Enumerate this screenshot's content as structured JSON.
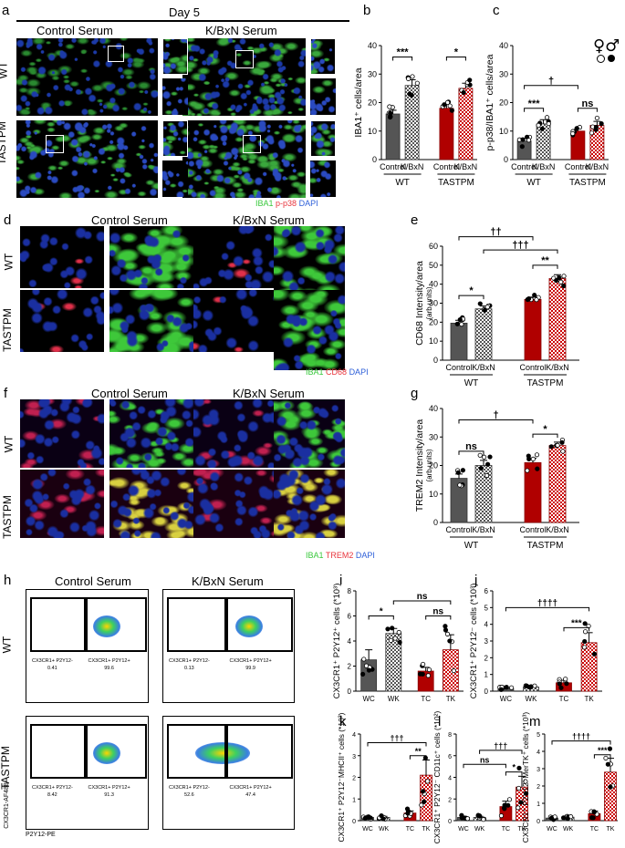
{
  "colors": {
    "wt": "#555555",
    "tastpm": "#b00000",
    "iba1": "#39c83c",
    "p38": "#e8343c",
    "cd68": "#e8343c",
    "dapi": "#2d5fd8",
    "trem2": "#e8343c"
  },
  "panel_letters": [
    "a",
    "b",
    "c",
    "d",
    "e",
    "f",
    "g",
    "h",
    "i",
    "j",
    "k",
    "l",
    "m"
  ],
  "panel_a": {
    "header": "Day 5",
    "col1": "Control Serum",
    "col2": "K/BxN Serum",
    "row1": "WT",
    "row2": "TASTPM",
    "legend": [
      "IBA1",
      "p-p38",
      "DAPI"
    ]
  },
  "panel_d": {
    "col1": "Control Serum",
    "col2": "K/BxN Serum",
    "row1": "WT",
    "row2": "TASTPM",
    "legend": [
      "IBA1",
      "CD68",
      "DAPI"
    ]
  },
  "panel_f": {
    "col1": "Control Serum",
    "col2": "K/BxN Serum",
    "row1": "WT",
    "row2": "TASTPM",
    "legend": [
      "IBA1",
      "TREM2",
      "DAPI"
    ]
  },
  "panel_h": {
    "col1": "Control Serum",
    "col2": "K/BxN Serum",
    "row1": "WT",
    "row2": "TASTPM",
    "xaxis": "P2Y12-PE",
    "yaxis": "CX3CR1-AF488",
    "gates": [
      {
        "neg_label": "CX3CR1+ P2Y12-",
        "neg_val": "0.41",
        "pos_label": "CX3CR1+ P2Y12+",
        "pos_val": "99.6"
      },
      {
        "neg_label": "CX3CR1+ P2Y12-",
        "neg_val": "0.13",
        "pos_label": "CX3CR1+ P2Y12+",
        "pos_val": "99.9"
      },
      {
        "neg_label": "CX3CR1+ P2Y12-",
        "neg_val": "8.42",
        "pos_label": "CX3CR1+ P2Y12+",
        "pos_val": "91.3"
      },
      {
        "neg_label": "CX3CR1+ P2Y12-",
        "neg_val": "52.6",
        "pos_label": "CX3CR1+ P2Y12+",
        "pos_val": "47.4"
      }
    ]
  },
  "sex_symbols": "♀♂",
  "chart_data": [
    {
      "id": "b",
      "type": "bar",
      "ylabel": "IBA1⁺ cells/area",
      "ylim": [
        0,
        40
      ],
      "yticks": [
        0,
        10,
        20,
        30,
        40
      ],
      "categories": [
        "Control",
        "K/BxN",
        "Control",
        "K/BxN"
      ],
      "groups": [
        "WT",
        "TASTPM"
      ],
      "values": [
        16,
        26,
        18,
        25
      ],
      "errors": [
        1.3,
        2,
        1.5,
        1.8
      ],
      "annotations": [
        {
          "from": 0,
          "to": 1,
          "text": "***",
          "y": 36
        },
        {
          "from": 2,
          "to": 3,
          "text": "*",
          "y": 36
        }
      ]
    },
    {
      "id": "c",
      "type": "bar",
      "ylabel": "p-p38/IBA1⁺ cells/area",
      "ylim": [
        0,
        40
      ],
      "yticks": [
        0,
        10,
        20,
        30,
        40
      ],
      "categories": [
        "Control",
        "K/BxN",
        "Control",
        "K/BxN"
      ],
      "groups": [
        "WT",
        "TASTPM"
      ],
      "values": [
        6.5,
        12.5,
        10,
        12
      ],
      "errors": [
        1,
        1.5,
        0.8,
        1.4
      ],
      "annotations": [
        {
          "from": 0,
          "to": 1,
          "text": "***",
          "y": 18
        },
        {
          "from": 2,
          "to": 3,
          "text": "ns",
          "y": 18
        },
        {
          "from": 0,
          "to": 2,
          "text": "†",
          "y": 26
        }
      ]
    },
    {
      "id": "e",
      "type": "bar",
      "ylabel": "CD68 Intensity/area",
      "ylabel2": "(arb.units)",
      "ylim": [
        0,
        60
      ],
      "yticks": [
        0,
        10,
        20,
        30,
        40,
        50,
        60
      ],
      "categories": [
        "Control",
        "K/BxN",
        "Control",
        "K/BxN"
      ],
      "groups": [
        "WT",
        "TASTPM"
      ],
      "values": [
        19.5,
        27,
        32,
        43
      ],
      "errors": [
        1.5,
        1.5,
        1.2,
        2
      ],
      "annotations": [
        {
          "from": 0,
          "to": 1,
          "text": "*",
          "y": 34
        },
        {
          "from": 2,
          "to": 3,
          "text": "**",
          "y": 50
        },
        {
          "from": 1,
          "to": 3,
          "text": "†††",
          "y": 58
        },
        {
          "from": 0,
          "to": 2,
          "text": "††",
          "y": 65
        }
      ]
    },
    {
      "id": "g",
      "type": "bar",
      "ylabel": "TREM2 Intensity/area",
      "ylabel2": "(arb.units)",
      "ylim": [
        0,
        40
      ],
      "yticks": [
        0,
        10,
        20,
        30,
        40
      ],
      "categories": [
        "Control",
        "K/BxN",
        "Control",
        "K/BxN"
      ],
      "groups": [
        "WT",
        "TASTPM"
      ],
      "values": [
        15.5,
        20,
        21,
        27
      ],
      "errors": [
        1.5,
        1.8,
        1.5,
        1.2
      ],
      "annotations": [
        {
          "from": 0,
          "to": 1,
          "text": "ns",
          "y": 25
        },
        {
          "from": 2,
          "to": 3,
          "text": "*",
          "y": 31
        },
        {
          "from": 0,
          "to": 2,
          "text": "†",
          "y": 36
        }
      ]
    },
    {
      "id": "i",
      "type": "bar",
      "ylabel": "CX3CR1⁺ P2Y12⁺ cells (*10³)",
      "ylim": [
        0,
        8
      ],
      "yticks": [
        0,
        2,
        4,
        6,
        8
      ],
      "categories": [
        "WC",
        "WK",
        "TC",
        "TK"
      ],
      "values": [
        2.5,
        4.6,
        1.6,
        3.3
      ],
      "errors": [
        0.8,
        0.4,
        0.3,
        1.2
      ],
      "annotations": [
        {
          "from": 0,
          "to": 1,
          "text": "*",
          "y": 6
        },
        {
          "from": 2,
          "to": 3,
          "text": "ns",
          "y": 6
        },
        {
          "from": 1,
          "to": 3,
          "text": "ns",
          "y": 7.2
        }
      ]
    },
    {
      "id": "j",
      "type": "bar",
      "ylabel": "CX3CR1⁺ P2Y12⁻ cells (*10³)",
      "ylim": [
        0,
        6
      ],
      "yticks": [
        0,
        1,
        2,
        3,
        4,
        5,
        6
      ],
      "categories": [
        "WC",
        "WK",
        "TC",
        "TK"
      ],
      "values": [
        0.15,
        0.25,
        0.5,
        2.9
      ],
      "errors": [
        0.05,
        0.05,
        0.15,
        0.6
      ],
      "annotations": [
        {
          "from": 2,
          "to": 3,
          "text": "***",
          "y": 3.8
        },
        {
          "from": 0,
          "to": 3,
          "text": "††††",
          "y": 5
        }
      ]
    },
    {
      "id": "k",
      "type": "bar",
      "ylabel": "CX3CR1⁺ P2Y12⁻MHCII⁺ cells (*10³)",
      "ylim": [
        0,
        4
      ],
      "yticks": [
        0,
        1,
        2,
        3,
        4
      ],
      "categories": [
        "WC",
        "WK",
        "TC",
        "TK"
      ],
      "values": [
        0.15,
        0.15,
        0.35,
        2.1
      ],
      "errors": [
        0.05,
        0.05,
        0.1,
        0.7
      ],
      "annotations": [
        {
          "from": 2,
          "to": 3,
          "text": "**",
          "y": 3.0
        },
        {
          "from": 0,
          "to": 3,
          "text": "†††",
          "y": 3.6
        }
      ]
    },
    {
      "id": "l",
      "type": "bar",
      "ylabel": "CX3CR1⁺ P2Y12⁻ CD11c⁺ cells (*10²)",
      "ylim": [
        0,
        8
      ],
      "yticks": [
        0,
        2,
        4,
        6,
        8
      ],
      "categories": [
        "WC",
        "WK",
        "TC",
        "TK"
      ],
      "values": [
        0.3,
        0.3,
        1.3,
        3.1
      ],
      "errors": [
        0.1,
        0.1,
        0.5,
        1
      ],
      "annotations": [
        {
          "from": 2,
          "to": 3,
          "text": "*",
          "y": 4.5
        },
        {
          "from": 0,
          "to": 2,
          "text": "ns",
          "y": 5.2
        },
        {
          "from": 1,
          "to": 3,
          "text": "†††",
          "y": 6.5
        }
      ]
    },
    {
      "id": "m",
      "type": "bar",
      "ylabel": "CX3CR1⁺ P2Y12⁻MerTK⁺ cells (*10³)",
      "ylim": [
        0,
        5
      ],
      "yticks": [
        0,
        1,
        2,
        3,
        4,
        5
      ],
      "categories": [
        "WC",
        "WK",
        "TC",
        "TK"
      ],
      "values": [
        0.15,
        0.2,
        0.4,
        2.8
      ],
      "errors": [
        0.05,
        0.05,
        0.15,
        0.8
      ],
      "annotations": [
        {
          "from": 2,
          "to": 3,
          "text": "***",
          "y": 3.8
        },
        {
          "from": 0,
          "to": 3,
          "text": "††††",
          "y": 4.6
        }
      ]
    }
  ]
}
